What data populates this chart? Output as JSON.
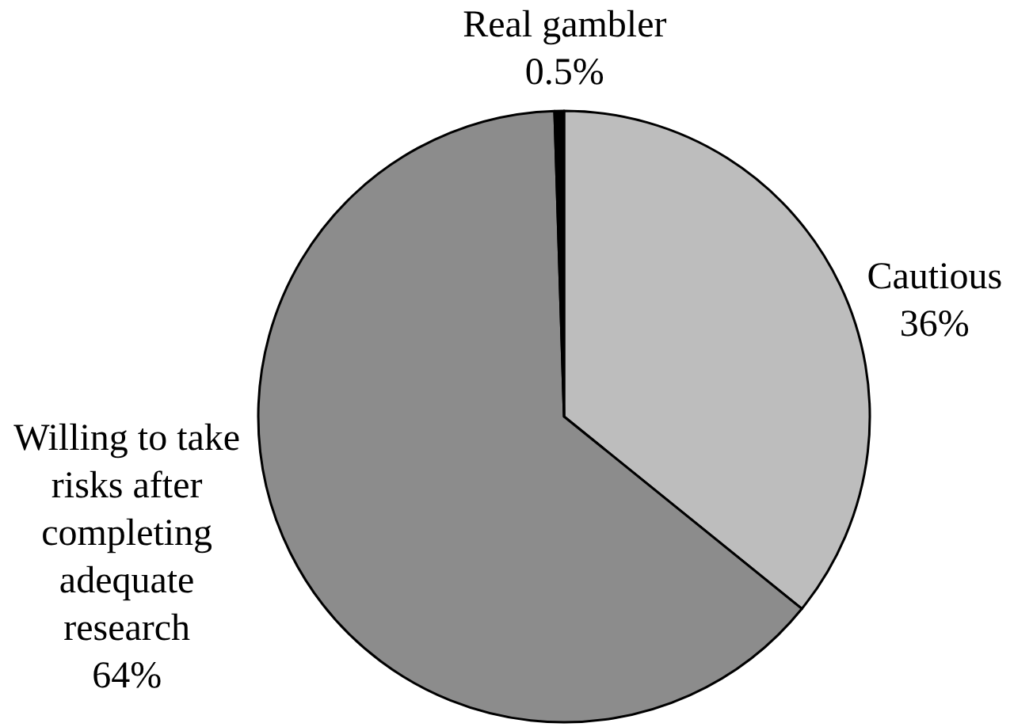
{
  "chart_data": {
    "type": "pie",
    "categories": [
      "Cautious",
      "Willing to take risks after completing adequate research",
      "Real gambler"
    ],
    "values": [
      36,
      64,
      0.5
    ],
    "colors": [
      "#bdbdbd",
      "#8c8c8c",
      "#000000"
    ],
    "value_labels": [
      "36%",
      "64%",
      "0.5%"
    ],
    "legend": false
  }
}
